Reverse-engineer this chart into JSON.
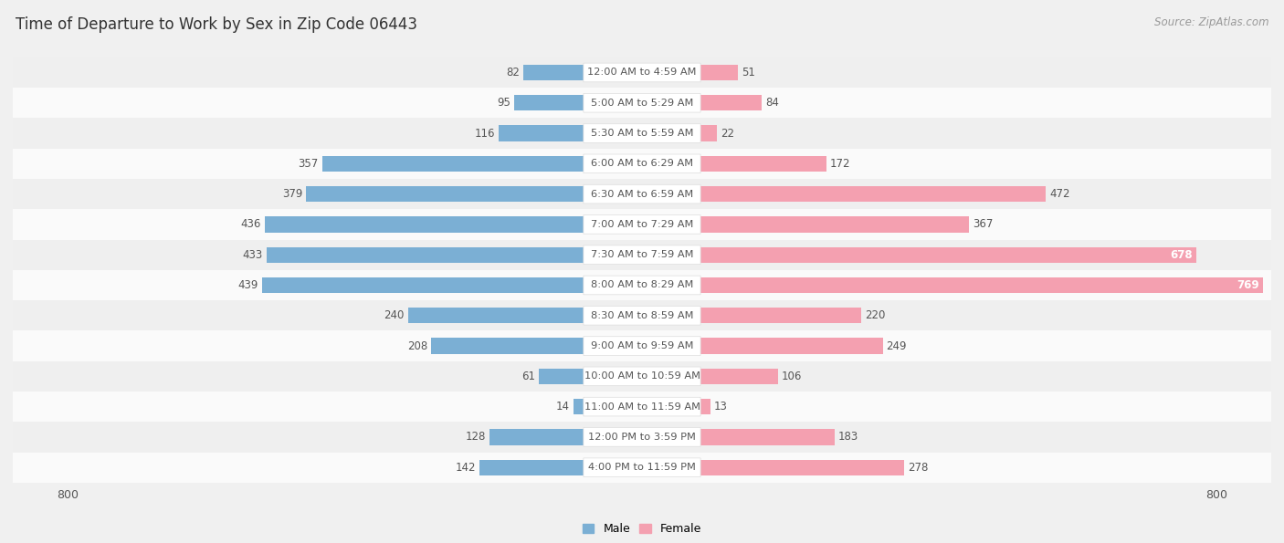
{
  "title": "Time of Departure to Work by Sex in Zip Code 06443",
  "source": "Source: ZipAtlas.com",
  "categories": [
    "12:00 AM to 4:59 AM",
    "5:00 AM to 5:29 AM",
    "5:30 AM to 5:59 AM",
    "6:00 AM to 6:29 AM",
    "6:30 AM to 6:59 AM",
    "7:00 AM to 7:29 AM",
    "7:30 AM to 7:59 AM",
    "8:00 AM to 8:29 AM",
    "8:30 AM to 8:59 AM",
    "9:00 AM to 9:59 AM",
    "10:00 AM to 10:59 AM",
    "11:00 AM to 11:59 AM",
    "12:00 PM to 3:59 PM",
    "4:00 PM to 11:59 PM"
  ],
  "male_values": [
    82,
    95,
    116,
    357,
    379,
    436,
    433,
    439,
    240,
    208,
    61,
    14,
    128,
    142
  ],
  "female_values": [
    51,
    84,
    22,
    172,
    472,
    367,
    678,
    769,
    220,
    249,
    106,
    13,
    183,
    278
  ],
  "male_color": "#7bafd4",
  "female_color": "#f4a0b0",
  "axis_max": 800,
  "bg_color": "#f0f0f0",
  "row_colors": [
    "#efefef",
    "#fafafa"
  ],
  "title_fontsize": 12,
  "source_fontsize": 8.5,
  "value_fontsize": 8.5,
  "cat_fontsize": 8.2,
  "legend_fontsize": 9,
  "label_color": "#555555",
  "white_label_color": "#ffffff",
  "title_color": "#333333",
  "source_color": "#999999"
}
